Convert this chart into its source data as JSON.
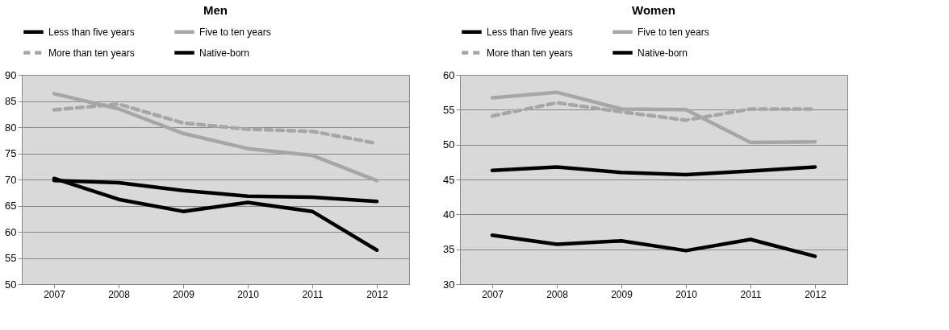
{
  "chart_data": [
    {
      "type": "line",
      "title": "Men",
      "categories": [
        "2007",
        "2008",
        "2009",
        "2010",
        "2011",
        "2012"
      ],
      "ylim": [
        50,
        90
      ],
      "yticks": [
        50,
        55,
        60,
        65,
        70,
        75,
        80,
        85,
        90
      ],
      "grid": "y",
      "legend": "top",
      "series": [
        {
          "name": "Less than five years",
          "color": "#000000",
          "line_style": "solid",
          "values": [
            70.2,
            66.2,
            63.9,
            65.6,
            63.9,
            56.5
          ]
        },
        {
          "name": "Five to ten years",
          "color": "#a6a6a6",
          "line_style": "solid",
          "values": [
            86.4,
            83.5,
            78.8,
            75.9,
            74.6,
            69.8
          ]
        },
        {
          "name": "More than ten years",
          "color": "#a6a6a6",
          "line_style": "dashed",
          "values": [
            83.3,
            84.4,
            80.8,
            79.6,
            79.2,
            76.9
          ]
        },
        {
          "name": "Native-born",
          "color": "#000000",
          "line_style": "solid",
          "values": [
            69.8,
            69.4,
            67.9,
            66.8,
            66.6,
            65.8
          ]
        }
      ]
    },
    {
      "type": "line",
      "title": "Women",
      "categories": [
        "2007",
        "2008",
        "2009",
        "2010",
        "2011",
        "2012"
      ],
      "ylim": [
        30,
        60
      ],
      "yticks": [
        30,
        35,
        40,
        45,
        50,
        55,
        60
      ],
      "grid": "y",
      "legend": "top",
      "series": [
        {
          "name": "Less than five years",
          "color": "#000000",
          "line_style": "solid",
          "values": [
            37.0,
            35.7,
            36.2,
            34.8,
            36.4,
            34.0
          ]
        },
        {
          "name": "Five to ten years",
          "color": "#a6a6a6",
          "line_style": "solid",
          "values": [
            56.7,
            57.5,
            55.1,
            55.0,
            50.3,
            50.4
          ]
        },
        {
          "name": "More than ten years",
          "color": "#a6a6a6",
          "line_style": "dashed",
          "values": [
            54.1,
            56.0,
            54.7,
            53.5,
            55.1,
            55.1
          ]
        },
        {
          "name": "Native-born",
          "color": "#000000",
          "line_style": "solid",
          "values": [
            46.3,
            46.8,
            46.0,
            45.7,
            46.2,
            46.8
          ]
        }
      ]
    }
  ]
}
